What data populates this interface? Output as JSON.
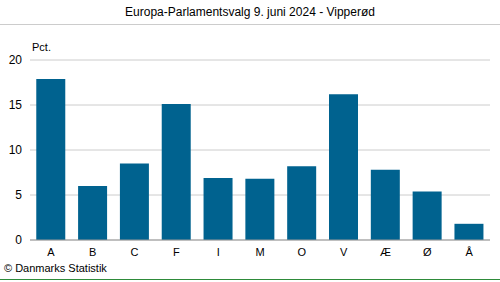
{
  "chart_data": {
    "type": "bar",
    "title": "Europa-Parlamentsvalg 9. juni 2024 - Vipperød",
    "ylabel": "Pct.",
    "footer": "© Danmarks Statistik",
    "categories": [
      "A",
      "B",
      "C",
      "F",
      "I",
      "M",
      "O",
      "V",
      "Æ",
      "Ø",
      "Å"
    ],
    "values": [
      17.9,
      6.0,
      8.5,
      15.1,
      6.9,
      6.8,
      8.2,
      16.2,
      7.8,
      5.4,
      1.8
    ],
    "color": "#00628f",
    "ylim": [
      0,
      20
    ],
    "yticks": [
      0,
      5,
      10,
      15,
      20
    ],
    "grid": true
  }
}
